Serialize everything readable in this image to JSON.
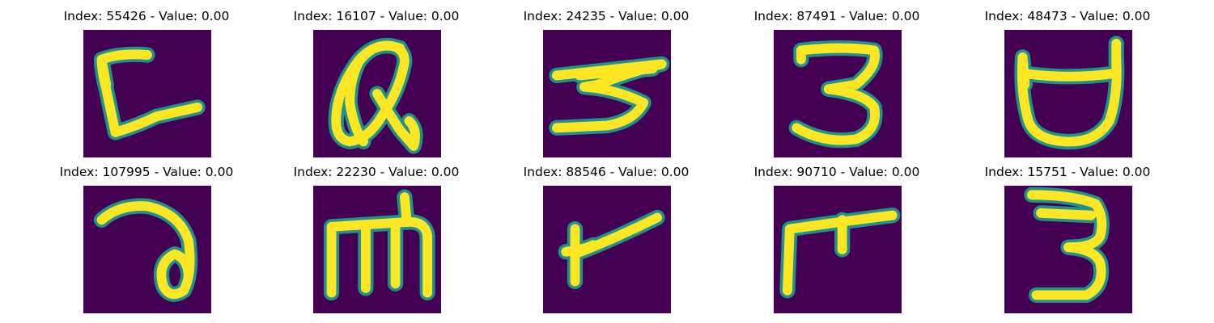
{
  "panel_colors": {
    "background": "#440154",
    "stroke": "#fde725",
    "edge": "#21918c"
  },
  "panels": [
    {
      "title": "Index: 55426 - Value: 0.00"
    },
    {
      "title": "Index: 16107 - Value: 0.00"
    },
    {
      "title": "Index: 24235 - Value: 0.00"
    },
    {
      "title": "Index: 87491 - Value: 0.00"
    },
    {
      "title": "Index: 48473 - Value: 0.00"
    },
    {
      "title": "Index: 107995 - Value: 0.00"
    },
    {
      "title": "Index: 22230 - Value: 0.00"
    },
    {
      "title": "Index: 88546 - Value: 0.00"
    },
    {
      "title": "Index: 90710 - Value: 0.00"
    },
    {
      "title": "Index: 15751 - Value: 0.00"
    }
  ]
}
